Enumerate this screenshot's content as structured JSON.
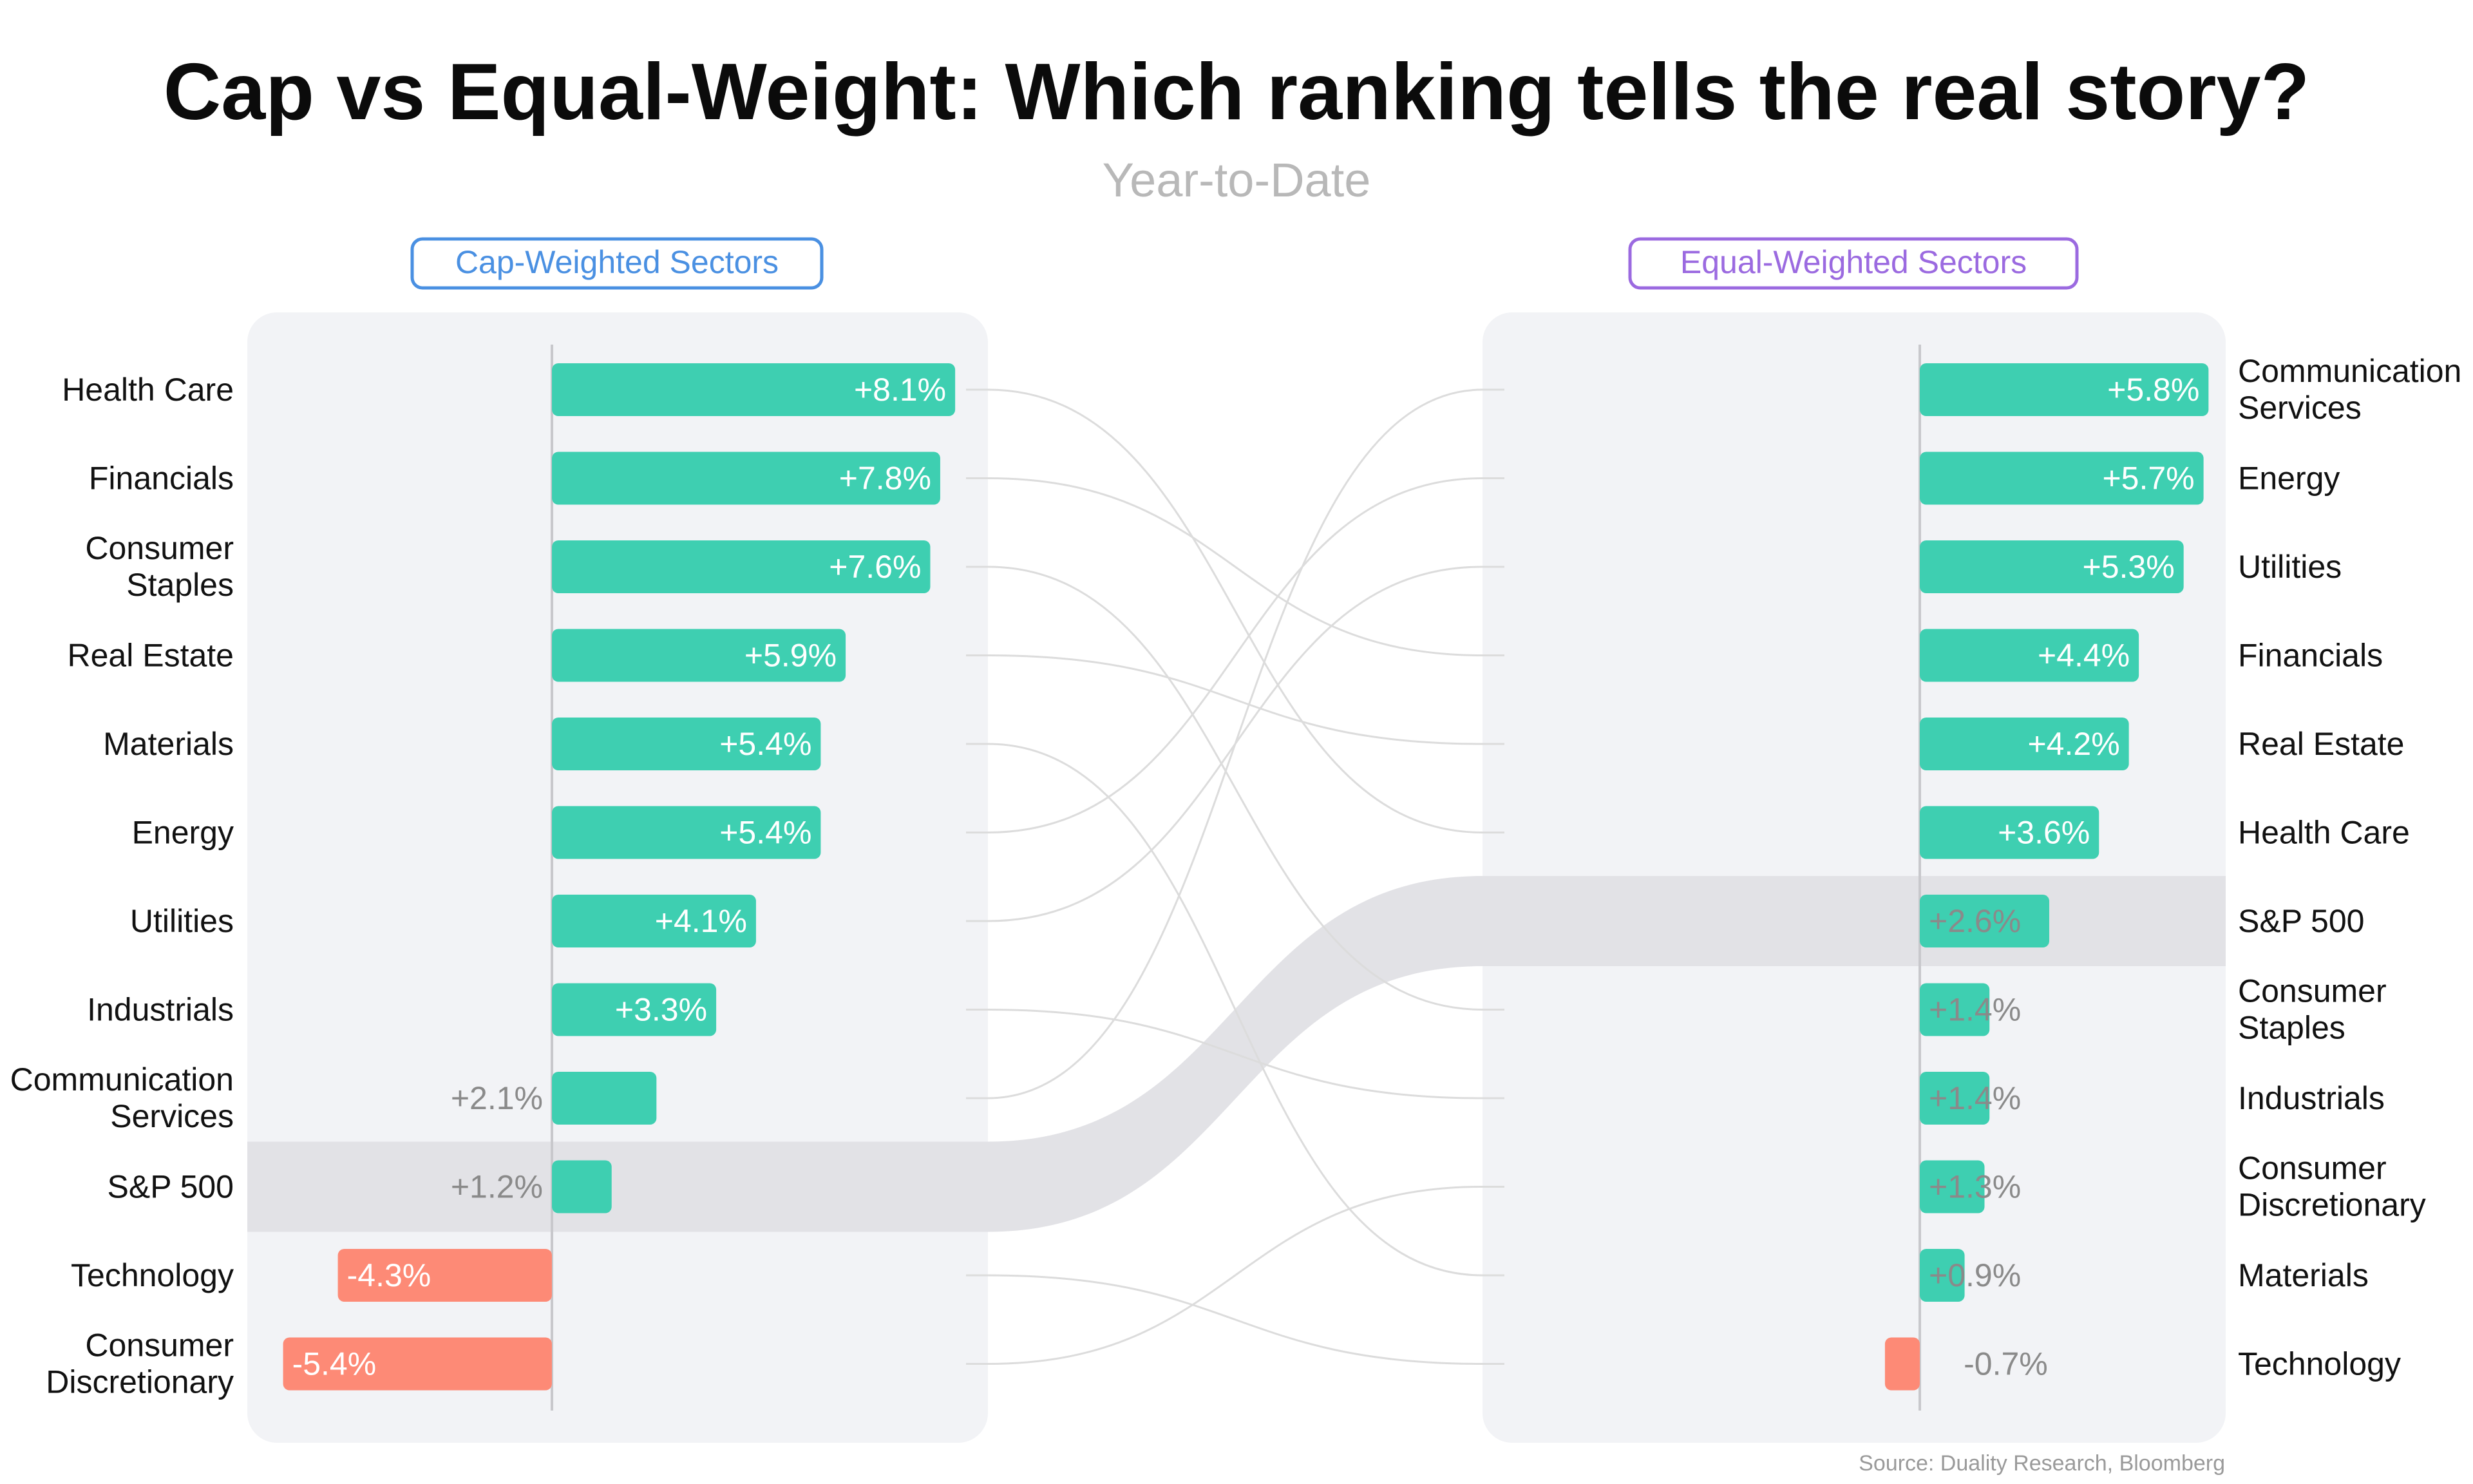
{
  "colors": {
    "positive": "#3ecfb1",
    "negative": "#fd8a76",
    "panel": "#f2f3f6",
    "band": "#e2e2e6",
    "connector": "#dcdcdc",
    "cap_accent": "#4a90e2",
    "equal_accent": "#9b6ae0"
  },
  "chart_data": {
    "type": "bar",
    "title": "Cap vs Equal-Weight: Which ranking tells the real story?",
    "subtitle": "Year-to-Date",
    "source": "Source: Duality Research, Bloomberg",
    "panels": [
      {
        "name": "Cap-Weighted Sectors",
        "accent": "cap_accent",
        "categories": [
          "Health Care",
          "Financials",
          "Consumer Staples",
          "Real Estate",
          "Materials",
          "Energy",
          "Utilities",
          "Industrials",
          "Communication Services",
          "S&P 500",
          "Technology",
          "Consumer Discretionary"
        ],
        "label_lines": [
          [
            "Health Care"
          ],
          [
            "Financials"
          ],
          [
            "Consumer",
            "Staples"
          ],
          [
            "Real Estate"
          ],
          [
            "Materials"
          ],
          [
            "Energy"
          ],
          [
            "Utilities"
          ],
          [
            "Industrials"
          ],
          [
            "Communication",
            "Services"
          ],
          [
            "S&P 500"
          ],
          [
            "Technology"
          ],
          [
            "Consumer",
            "Discretionary"
          ]
        ],
        "values": [
          8.1,
          7.8,
          7.6,
          5.9,
          5.4,
          5.4,
          4.1,
          3.3,
          2.1,
          1.2,
          -4.3,
          -5.4
        ],
        "value_labels": [
          "+8.1%",
          "+7.8%",
          "+7.6%",
          "+5.9%",
          "+5.4%",
          "+5.4%",
          "+4.1%",
          "+3.3%",
          "+2.1%",
          "+1.2%",
          "-4.3%",
          "-5.4%"
        ]
      },
      {
        "name": "Equal-Weighted Sectors",
        "accent": "equal_accent",
        "categories": [
          "Communication Services",
          "Energy",
          "Utilities",
          "Financials",
          "Real Estate",
          "Health Care",
          "S&P 500",
          "Consumer Staples",
          "Industrials",
          "Consumer Discretionary",
          "Materials",
          "Technology"
        ],
        "label_lines": [
          [
            "Communication",
            "Services"
          ],
          [
            "Energy"
          ],
          [
            "Utilities"
          ],
          [
            "Financials"
          ],
          [
            "Real Estate"
          ],
          [
            "Health Care"
          ],
          [
            "S&P 500"
          ],
          [
            "Consumer",
            "Staples"
          ],
          [
            "Industrials"
          ],
          [
            "Consumer",
            "Discretionary"
          ],
          [
            "Materials"
          ],
          [
            "Technology"
          ]
        ],
        "values": [
          5.8,
          5.7,
          5.3,
          4.4,
          4.2,
          3.6,
          2.6,
          1.4,
          1.4,
          1.3,
          0.9,
          -0.7
        ],
        "value_labels": [
          "+5.8%",
          "+5.7%",
          "+5.3%",
          "+4.4%",
          "+4.2%",
          "+3.6%",
          "+2.6%",
          "+1.4%",
          "+1.4%",
          "+1.3%",
          "+0.9%",
          "-0.7%"
        ]
      }
    ],
    "highlight": "S&P 500"
  }
}
